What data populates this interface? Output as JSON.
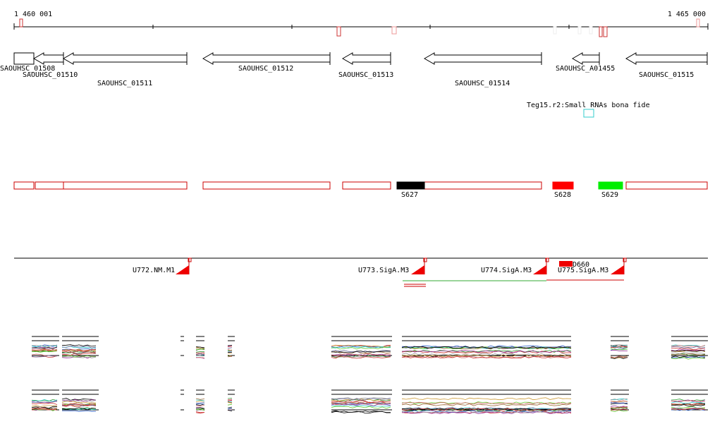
{
  "header": {
    "start_label": "1 460 001",
    "end_label": "1 465 000"
  },
  "genes": [
    {
      "label": "SAOUHSC_01508"
    },
    {
      "label": "SAOUHSC_01510"
    },
    {
      "label": "SAOUHSC_01511"
    },
    {
      "label": "SAOUHSC_01512"
    },
    {
      "label": "SAOUHSC_01513"
    },
    {
      "label": "SAOUHSC_01514"
    },
    {
      "label": "SAOUHSC_A01455"
    },
    {
      "label": "SAOUHSC_01515"
    }
  ],
  "annotation": {
    "label": "Teg15.r2:Small RNAs bona fide"
  },
  "segments": [
    {
      "label": "S627"
    },
    {
      "label": "S628"
    },
    {
      "label": "S629"
    }
  ],
  "promoters": [
    {
      "label": "U772.NM.M1"
    },
    {
      "label": "U773.SigA.M3"
    },
    {
      "label": "U774.SigA.M3"
    },
    {
      "label": "U775.SigA.M3"
    }
  ],
  "terminator": {
    "label": "D660"
  }
}
